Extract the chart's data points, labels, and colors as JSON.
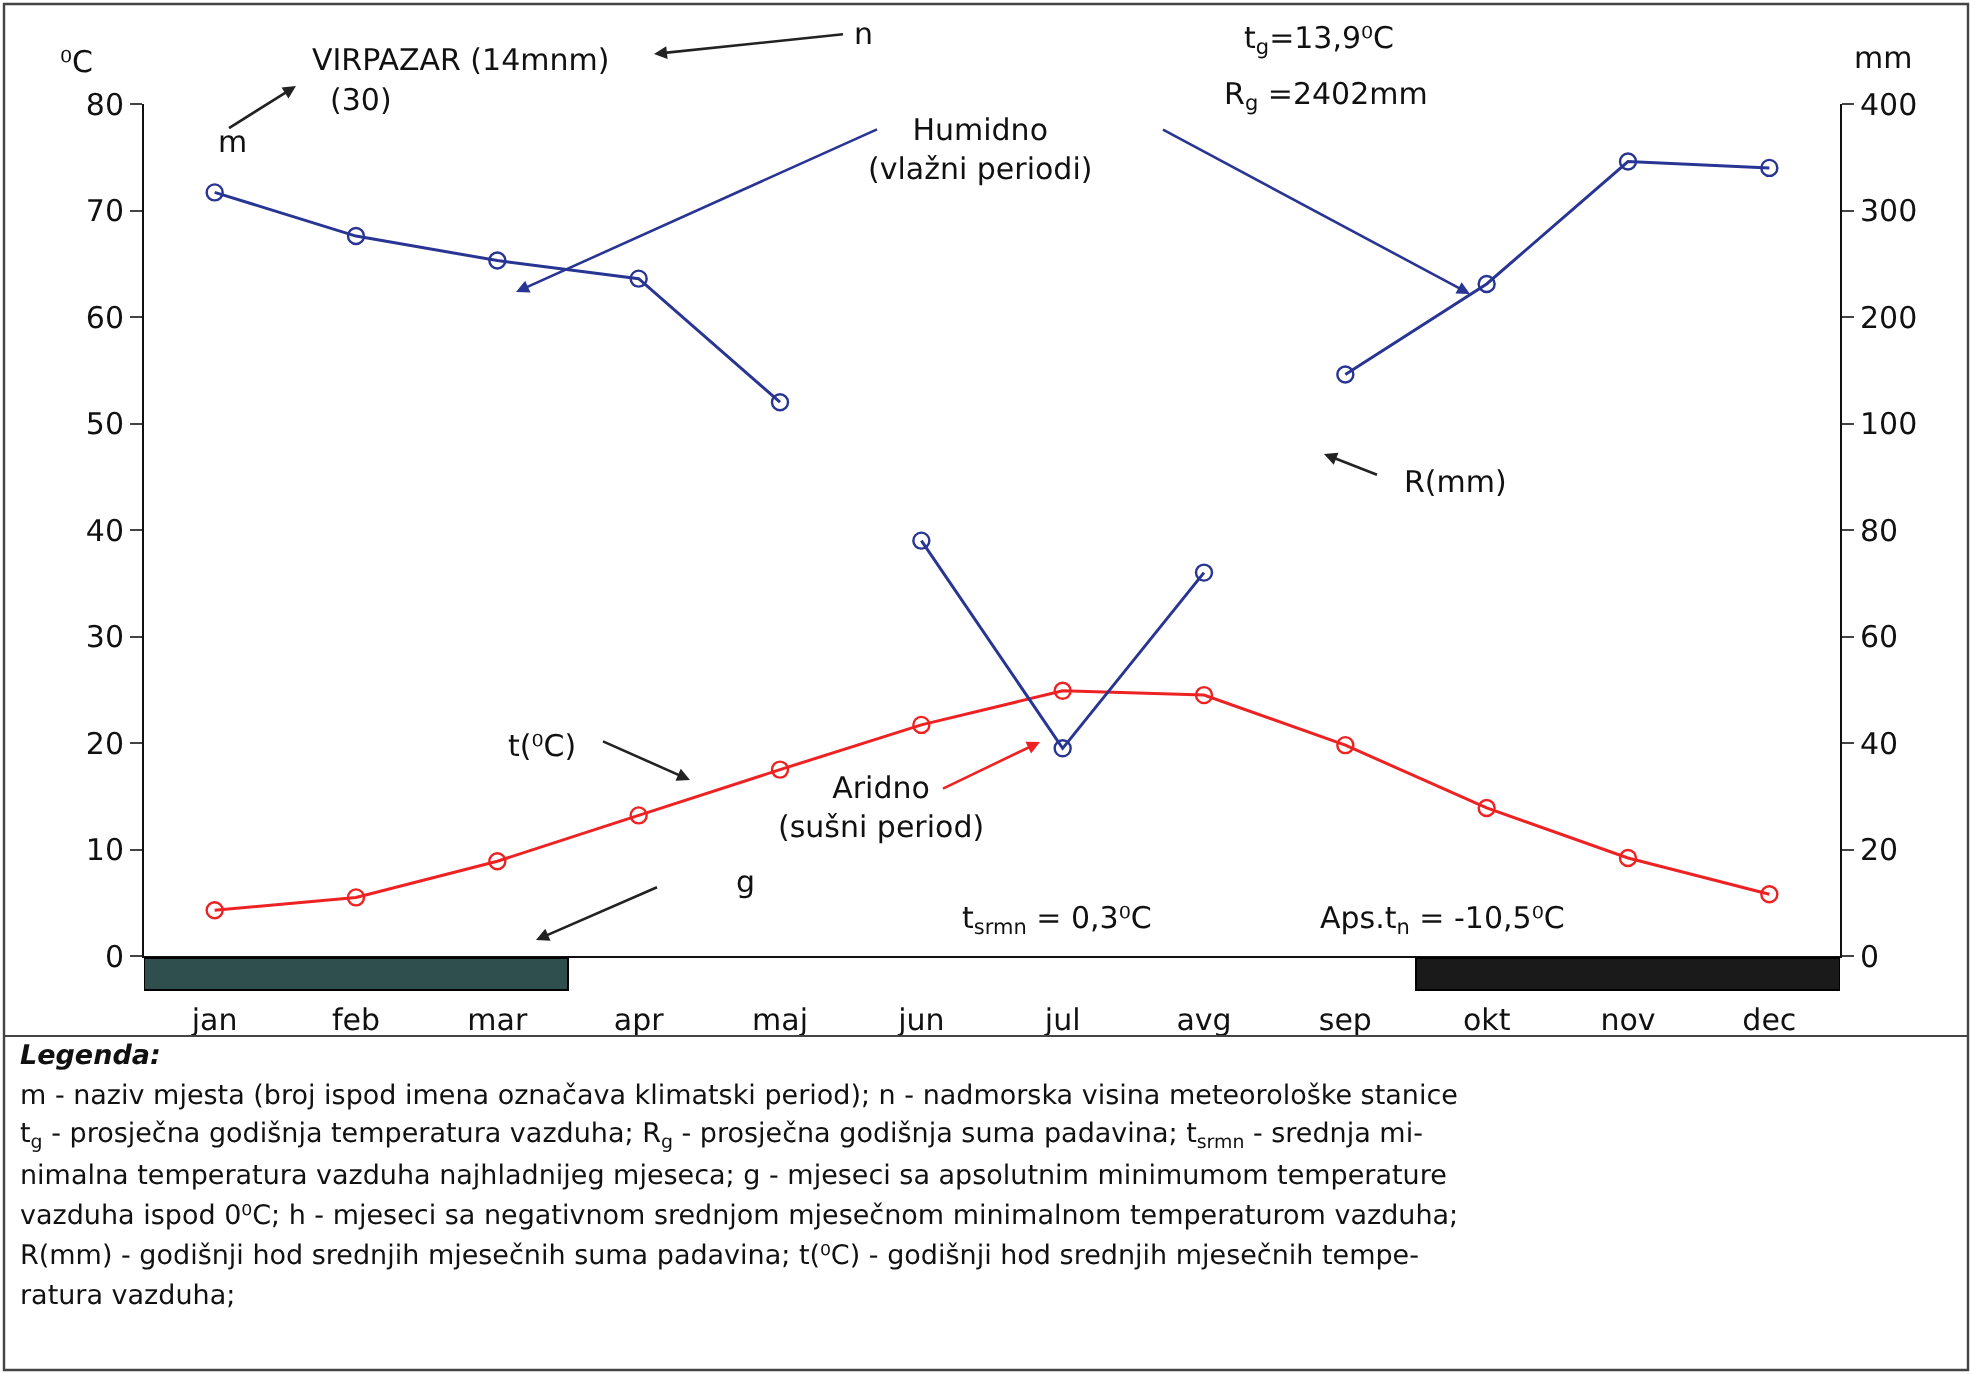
{
  "chart_data": {
    "type": "line",
    "ylabel": "⁰C",
    "y2label": "mm",
    "categories": [
      "jan",
      "feb",
      "mar",
      "apr",
      "maj",
      "jun",
      "jul",
      "avg",
      "sep",
      "okt",
      "nov",
      "dec"
    ],
    "series": [
      {
        "color": "#ee2222",
        "values": [
          4.3,
          5.5,
          8.9,
          13.2,
          17.5,
          21.7,
          24.9,
          24.5,
          19.8,
          13.9,
          9.2,
          5.8
        ]
      },
      {
        "color": "#283593",
        "axis": "y3",
        "values": [
          317,
          276,
          253,
          236,
          120,
          null,
          null,
          null,
          146,
          231,
          346,
          340
        ]
      },
      {
        "color": "#283593",
        "axis": "y2",
        "values": [
          null,
          null,
          null,
          null,
          null,
          78,
          39,
          72,
          null,
          null,
          null,
          null
        ]
      }
    ],
    "ylim": [
      0,
      80
    ],
    "yticks": [
      0,
      10,
      20,
      30,
      40,
      50,
      60,
      70,
      80
    ],
    "y2lim": [
      0,
      160
    ],
    "y2ticks": [
      0,
      20,
      40,
      60,
      80
    ],
    "y3lim": [
      -400,
      400
    ],
    "y3ticks": [
      100,
      200,
      300,
      400
    ],
    "marker": "circle",
    "annotations": [
      "VIRPAZAR (14mnm)",
      "(30)",
      "m",
      "n",
      "t$_{g}$=13,9⁰C",
      "R$_{g}$ =2402mm",
      "Humidno\n(vlažni periodi)",
      "R(mm)",
      "t(⁰C)",
      "Aridno\n(sušni period)",
      "g",
      "t$_{srmn}$ = 0,3⁰C",
      "Aps.t$_{n}$ = -10,5⁰C",
      "Legenda:",
      "m - naziv mjesta (broj ispod imena označava klimatski period); n - nadmorska visina meteorološke stanice",
      "t$_{g}$ - prosječna godišnja temperatura vazduha; R$_{g}$ - prosječna godišnja suma padavina; t$_{srmn}$ - srednja mi-",
      "nimalna temperatura vazduha najhladnijeg mjeseca; g - mjeseci sa apsolutnim minimumom temperature",
      "vazduha ispod 0⁰C; h - mjeseci sa negativnom srednjom mjesečnom minimalnom temperaturom vazduha;",
      "R(mm) - godišnji hod srednjih mjesečnih suma padavina; t(⁰C) - godišnji hod srednjih mjesečnih tempe-",
      "ratura vazduha;"
    ]
  }
}
